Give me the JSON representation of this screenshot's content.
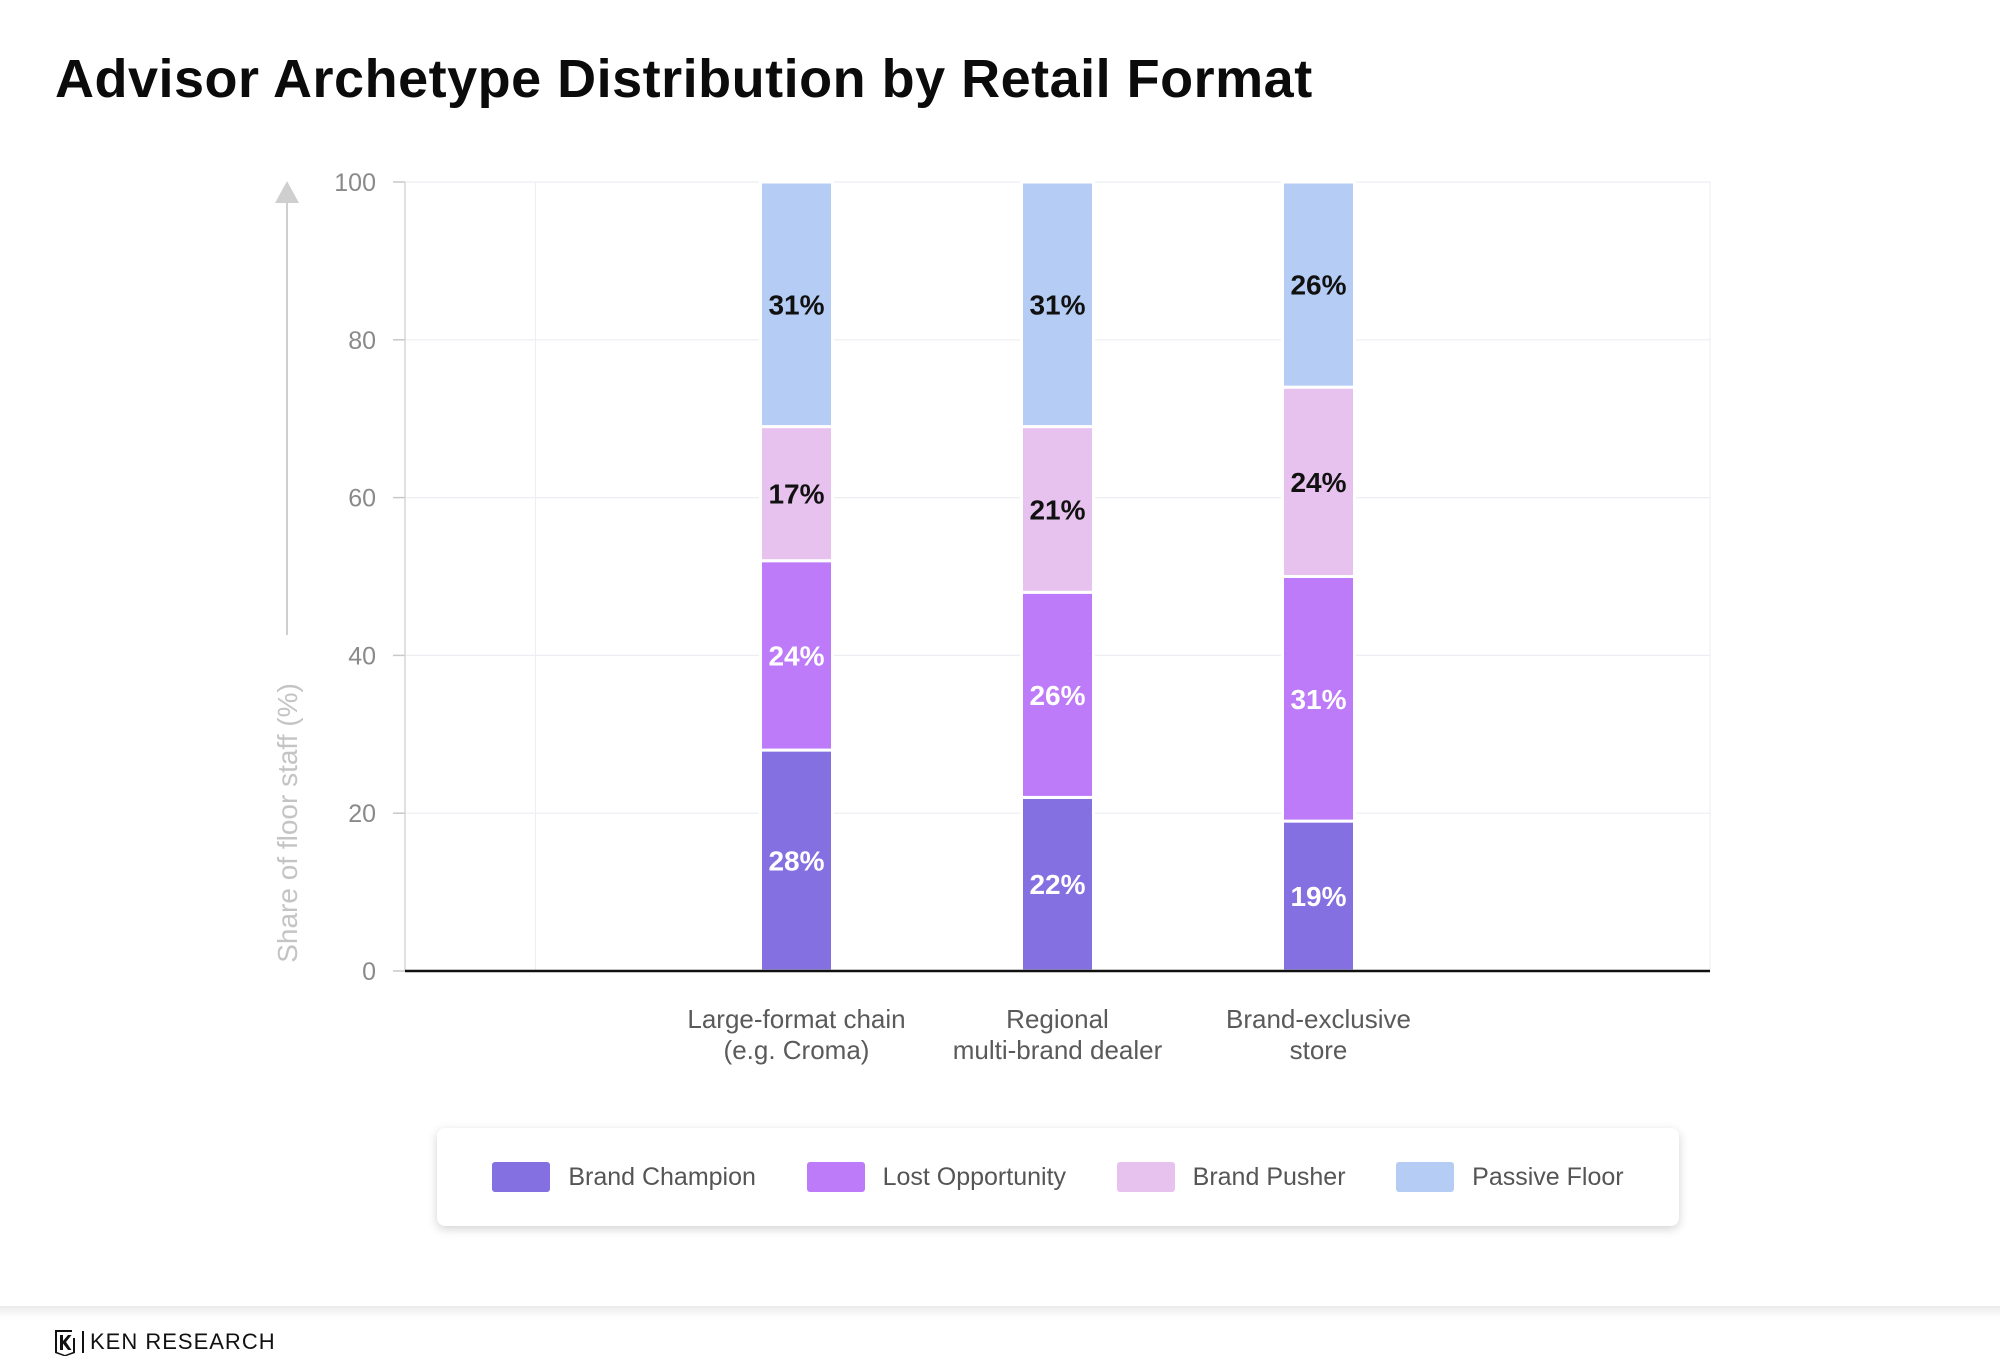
{
  "title": "Advisor Archetype Distribution by Retail Format",
  "chart_data": {
    "type": "bar",
    "stacked": true,
    "categories": [
      [
        "Large-format chain",
        "(e.g. Croma)"
      ],
      [
        "Regional",
        "multi-brand dealer"
      ],
      [
        "Brand-exclusive",
        "store"
      ]
    ],
    "series": [
      {
        "name": "Brand Champion",
        "values": [
          28,
          22,
          19
        ],
        "color": "#8470e0",
        "label_color": "#ffffff"
      },
      {
        "name": "Lost Opportunity",
        "values": [
          24,
          26,
          31
        ],
        "color": "#bd7bfa",
        "label_color": "#ffffff"
      },
      {
        "name": "Brand Pusher",
        "values": [
          17,
          21,
          24
        ],
        "color": "#e8c2ee",
        "label_color": "#111111"
      },
      {
        "name": "Passive Floor",
        "values": [
          31,
          31,
          26
        ],
        "color": "#b5cdf4",
        "label_color": "#111111"
      }
    ],
    "data_labels": [
      [
        "28%",
        "22%",
        "19%"
      ],
      [
        "24%",
        "26%",
        "31%"
      ],
      [
        "17%",
        "21%",
        "24%"
      ],
      [
        "31%",
        "31%",
        "26%"
      ]
    ],
    "ylabel": "Share of floor staff (%)",
    "ylim": [
      0,
      100
    ],
    "yticks": [
      0,
      20,
      40,
      60,
      80,
      100
    ],
    "grid": true,
    "legend_position": "bottom"
  },
  "branding": {
    "logo_text": "KEN RESEARCH"
  }
}
